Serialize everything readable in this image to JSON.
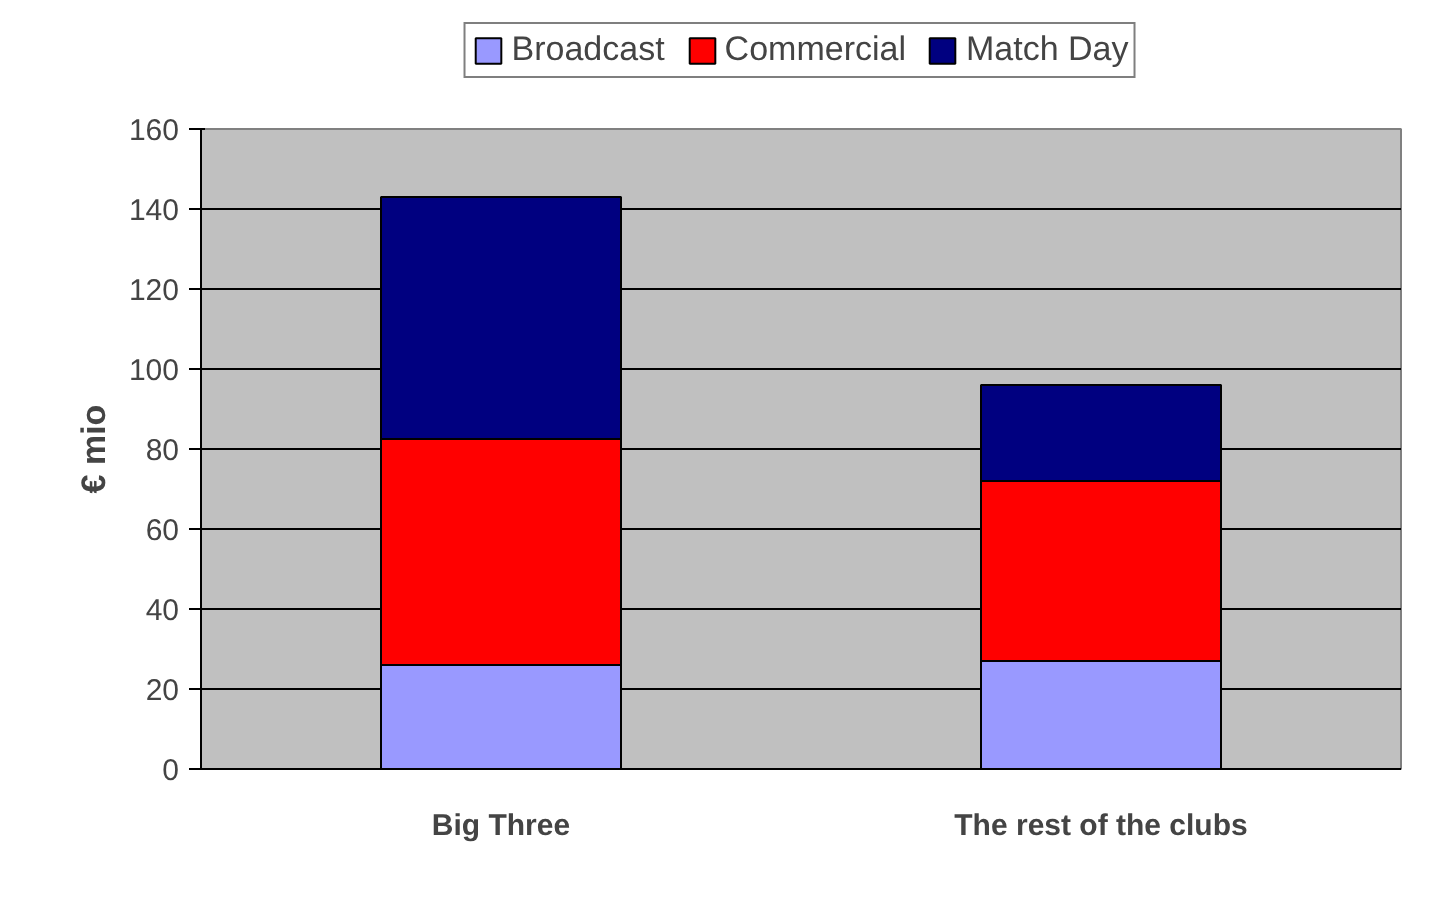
{
  "chart_data": {
    "type": "bar",
    "stacked": true,
    "ylabel": "€ mio",
    "categories": [
      "Big Three",
      "The rest of the clubs"
    ],
    "series": [
      {
        "name": "Broadcast",
        "color": "#9999ff",
        "values": [
          26,
          27
        ]
      },
      {
        "name": "Commercial",
        "color": "#ff0000",
        "values": [
          56.5,
          45
        ]
      },
      {
        "name": "Match Day",
        "color": "#000080",
        "values": [
          60.5,
          24
        ]
      }
    ],
    "ylim": [
      0,
      160
    ],
    "yticks": [
      0,
      20,
      40,
      60,
      80,
      100,
      120,
      140,
      160
    ],
    "grid": "y",
    "legend": "top"
  }
}
